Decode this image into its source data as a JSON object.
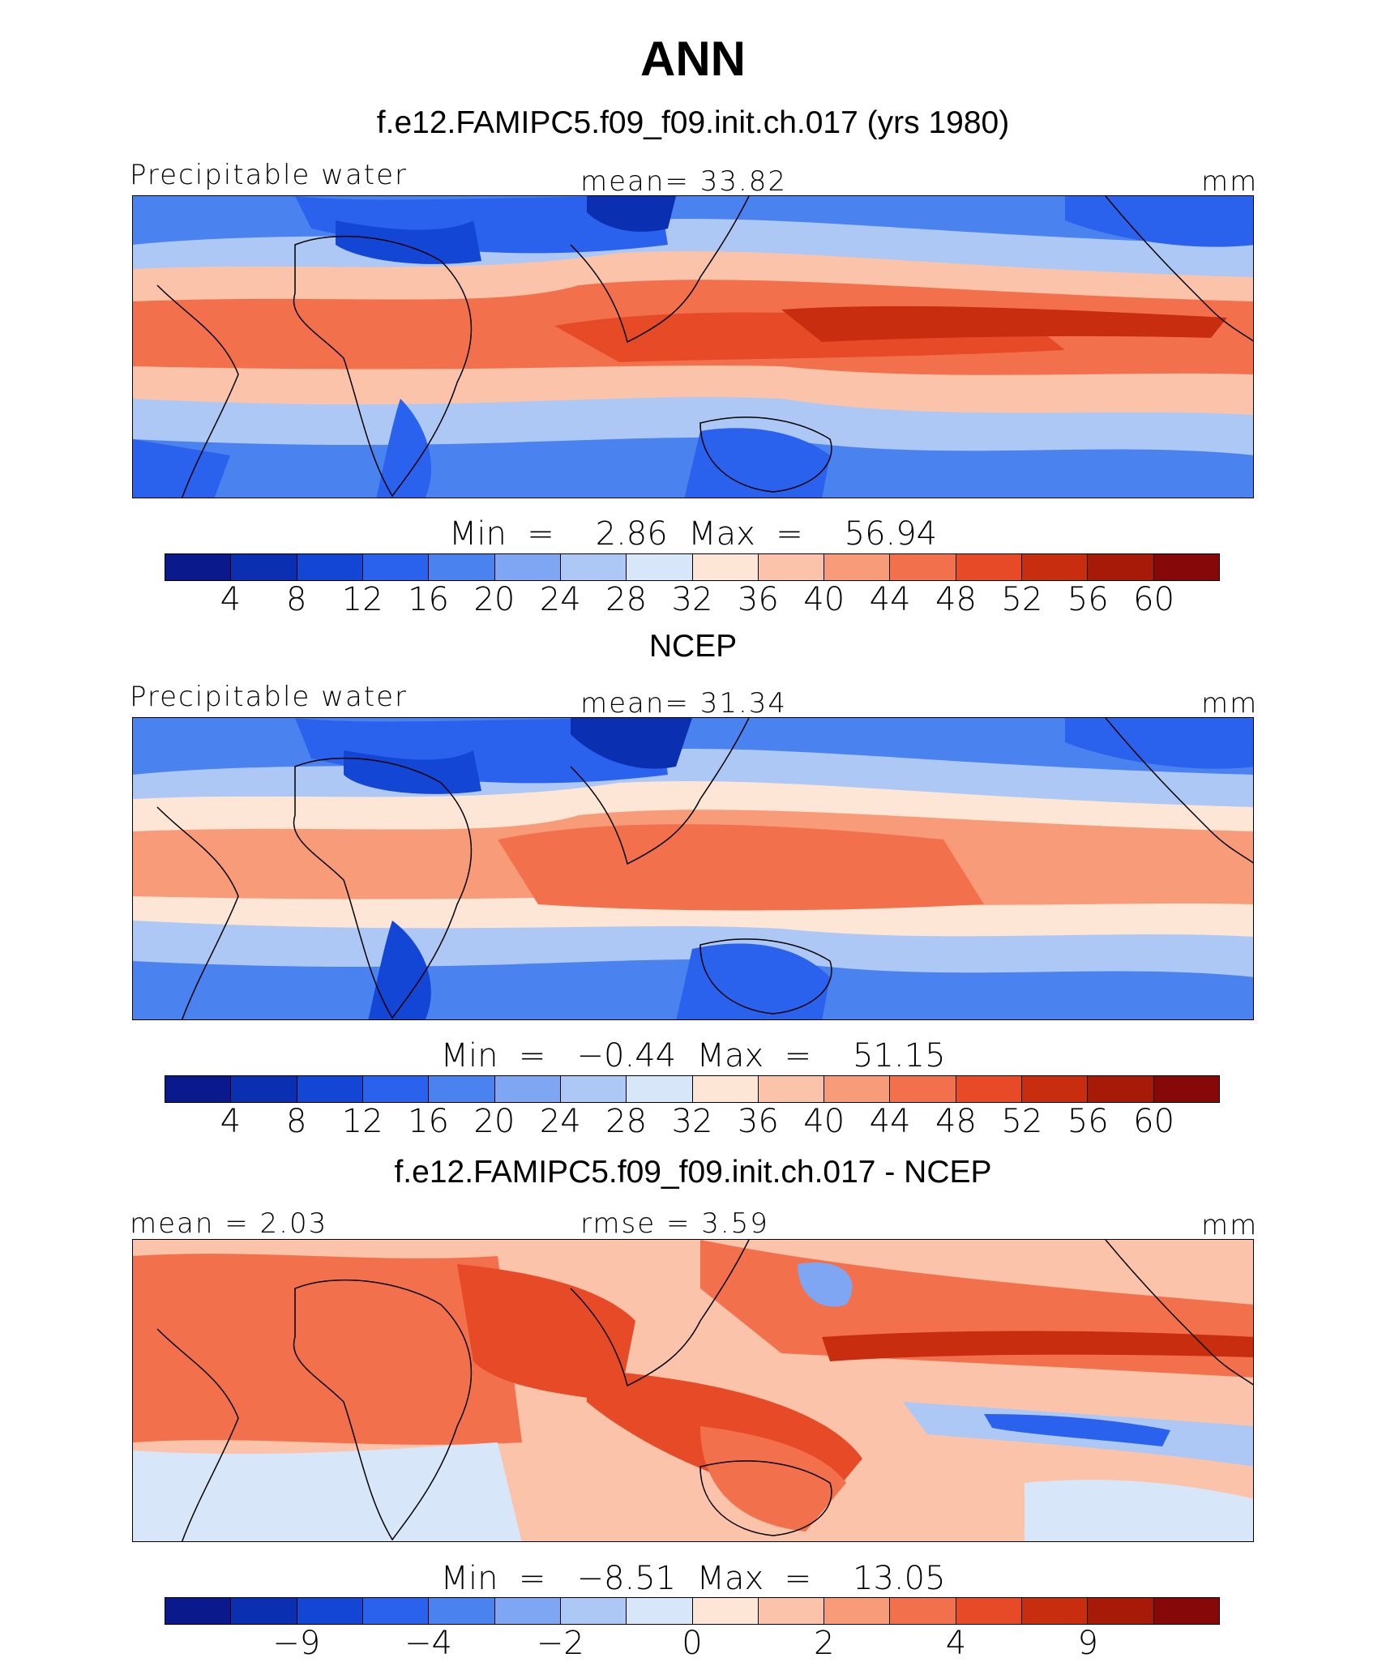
{
  "figure": {
    "title": "ANN",
    "units": "mm"
  },
  "panels": [
    {
      "heading": "f.e12.FAMIPC5.f09_f09.init.ch.017 (yrs 1980)",
      "left_label": "Precipitable water",
      "center_label": "mean=   33.82",
      "right_label": "mm",
      "minmax": "Min  =    2.86  Max  =    56.94",
      "colorbar_ticks": [
        "4",
        "8",
        "12",
        "16",
        "20",
        "24",
        "28",
        "32",
        "36",
        "40",
        "44",
        "48",
        "52",
        "56",
        "60"
      ]
    },
    {
      "heading": "NCEP",
      "left_label": "Precipitable water",
      "center_label": "mean=   31.34",
      "right_label": "mm",
      "minmax": "Min  =   −0.44  Max  =    51.15",
      "colorbar_ticks": [
        "4",
        "8",
        "12",
        "16",
        "20",
        "24",
        "28",
        "32",
        "36",
        "40",
        "44",
        "48",
        "52",
        "56",
        "60"
      ]
    },
    {
      "heading": "f.e12.FAMIPC5.f09_f09.init.ch.017 - NCEP",
      "left_label": "mean  =    2.03",
      "center_label": "rmse  =    3.59",
      "right_label": "mm",
      "minmax": "Min  =   −8.51  Max  =    13.05",
      "colorbar_ticks": [
        "−9",
        "−4",
        "−2",
        "0",
        "2",
        "4",
        "9"
      ]
    }
  ],
  "colorbar_colors": [
    "#0a1a8c",
    "#0a2fb0",
    "#1446d6",
    "#2a62ee",
    "#4a82f0",
    "#7ea6f2",
    "#aec8f6",
    "#d8e6fa",
    "#fde6d6",
    "#fbc4aa",
    "#f89b78",
    "#f2714c",
    "#e64a26",
    "#c92d10",
    "#a81a08",
    "#860808"
  ],
  "colorbar_colors_diff": [
    "#0a1a8c",
    "#0a2fb0",
    "#1446d6",
    "#2a62ee",
    "#4a82f0",
    "#7ea6f2",
    "#aec8f6",
    "#d8e6fa",
    "#fde6d6",
    "#fbc4aa",
    "#f89b78",
    "#f2714c",
    "#e64a26",
    "#c92d10",
    "#a81a08",
    "#860808"
  ]
}
